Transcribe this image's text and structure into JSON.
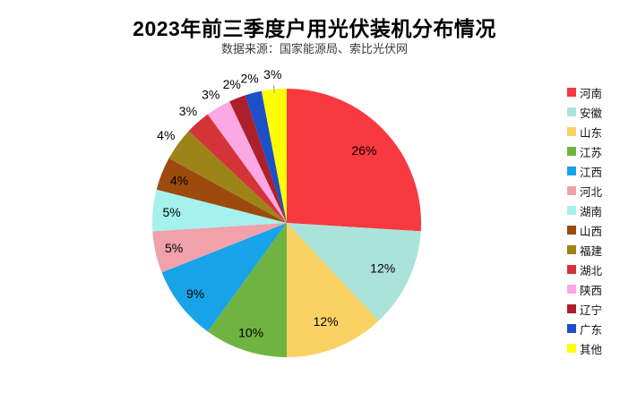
{
  "header": {
    "title": "2023年前三季度户用光伏装机分布情况",
    "subtitle": "数据来源：国家能源局、索比光伏网"
  },
  "colors": {
    "title": "#000000",
    "subtitle": "#3d3d3d",
    "label_text": "#000000",
    "leader_line": "#999999",
    "background": "#ffffff"
  },
  "chart_data": {
    "type": "pie",
    "title": "2023年前三季度户用光伏装机分布情况",
    "subtitle": "数据来源：国家能源局、索比光伏网",
    "unit": "%",
    "start_angle_deg": 0,
    "direction": "clockwise",
    "legend_position": "right",
    "grid": false,
    "slices": [
      {
        "name": "河南",
        "value": 26,
        "label": "26%",
        "color": "#F8393F",
        "label_pos": "inside"
      },
      {
        "name": "安徽",
        "value": 12,
        "label": "12%",
        "color": "#ABE3DB",
        "label_pos": "inside"
      },
      {
        "name": "山东",
        "value": 12,
        "label": "12%",
        "color": "#FAD264",
        "label_pos": "inside"
      },
      {
        "name": "江苏",
        "value": 10,
        "label": "10%",
        "color": "#6FB440",
        "label_pos": "inside"
      },
      {
        "name": "江西",
        "value": 9,
        "label": "9%",
        "color": "#18A3E8",
        "label_pos": "inside"
      },
      {
        "name": "河北",
        "value": 5,
        "label": "5%",
        "color": "#F0A1AA",
        "label_pos": "inside"
      },
      {
        "name": "湖南",
        "value": 5,
        "label": "5%",
        "color": "#A4F1EE",
        "label_pos": "inside"
      },
      {
        "name": "山西",
        "value": 4,
        "label": "4%",
        "color": "#9C4A0E",
        "label_pos": "inside"
      },
      {
        "name": "福建",
        "value": 4,
        "label": "4%",
        "color": "#9D8418",
        "label_pos": "outside"
      },
      {
        "name": "湖北",
        "value": 3,
        "label": "3%",
        "color": "#D43438",
        "label_pos": "outside"
      },
      {
        "name": "陕西",
        "value": 3,
        "label": "3%",
        "color": "#FBA8E4",
        "label_pos": "outside"
      },
      {
        "name": "辽宁",
        "value": 2,
        "label": "2%",
        "color": "#AD1F2A",
        "label_pos": "outside"
      },
      {
        "name": "广东",
        "value": 2,
        "label": "2%",
        "color": "#1D4FC8",
        "label_pos": "outside"
      },
      {
        "name": "其他",
        "value": 3,
        "label": "3%",
        "color": "#FFFF00",
        "label_pos": "outside",
        "leader_line": true
      }
    ]
  }
}
